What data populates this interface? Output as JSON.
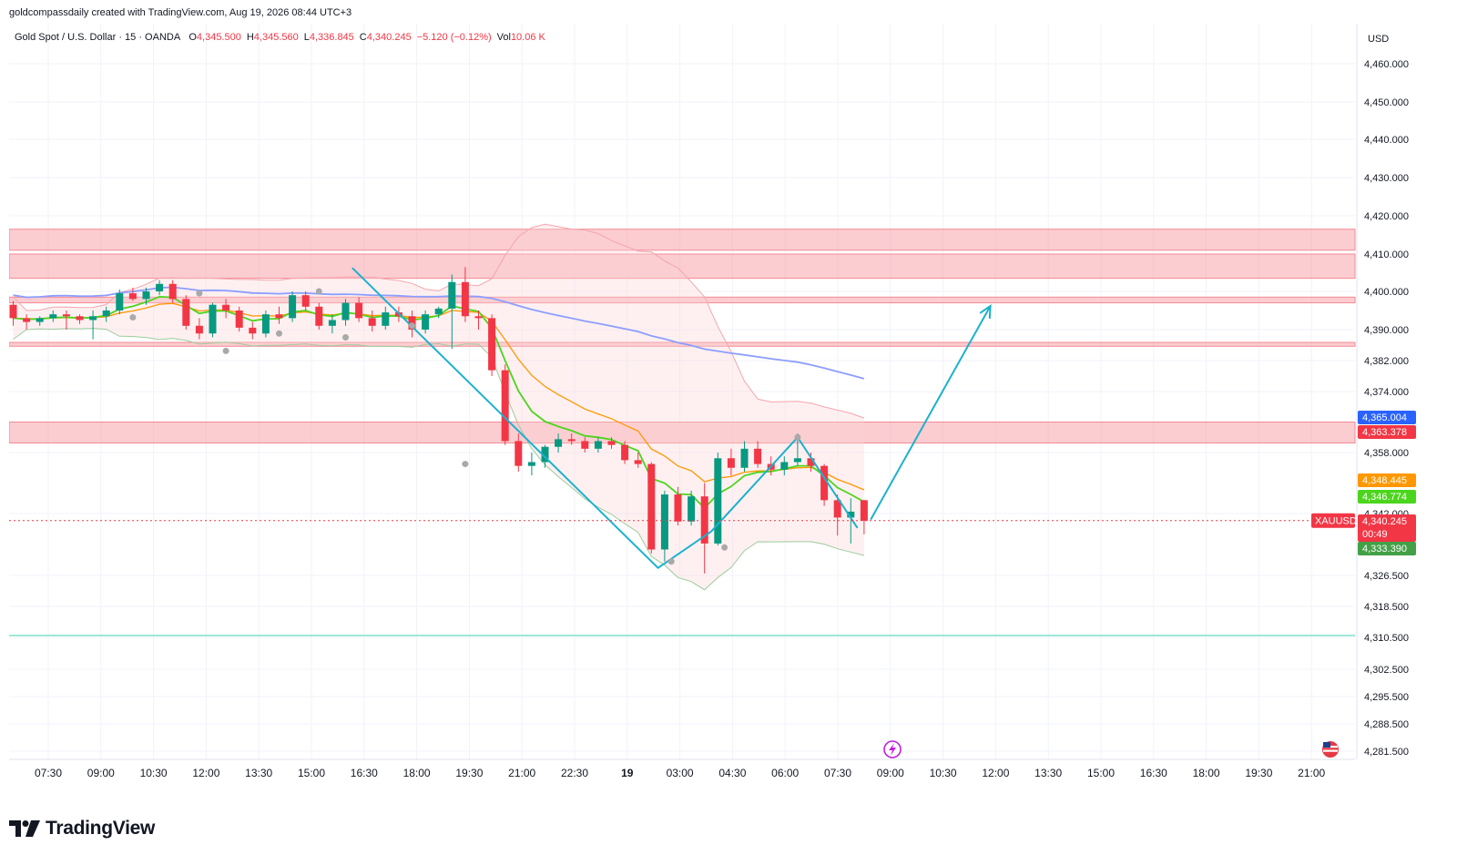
{
  "header": {
    "credit": "goldcompassdaily created with TradingView.com, Aug 19, 2026 08:44 UTC+3",
    "symbol": "Gold Spot / U.S. Dollar · 15 · OANDA",
    "ohlc": [
      {
        "label": "O",
        "value": "4,345.500"
      },
      {
        "label": "H",
        "value": "4,345.560"
      },
      {
        "label": "L",
        "value": "4,336.845"
      },
      {
        "label": "C",
        "value": "4,340.245"
      },
      {
        "label": "",
        "value": "−5.120 (−0.12%)"
      },
      {
        "label": "Vol",
        "value": "10.06 K"
      }
    ]
  },
  "brand": {
    "name": "TradingView"
  },
  "colors": {
    "up": "#089981",
    "down": "#f23645",
    "zone": "#f7a3aa",
    "arrow": "#1cb1cf"
  },
  "chart_data": {
    "type": "candlestick",
    "currency": "USD",
    "x_ticks": [
      "07:30",
      "09:00",
      "10:30",
      "12:00",
      "13:30",
      "15:00",
      "16:30",
      "18:00",
      "19:30",
      "21:00",
      "22:30",
      "19",
      "03:00",
      "04:30",
      "06:00",
      "07:30",
      "09:00",
      "10:30",
      "12:00",
      "13:30",
      "15:00",
      "16:30",
      "18:00",
      "19:30",
      "21:00"
    ],
    "y_ticks": [
      "4,460.000",
      "4,450.000",
      "4,440.000",
      "4,430.000",
      "4,420.000",
      "4,410.000",
      "4,400.000",
      "4,390.000",
      "4,382.000",
      "4,374.000",
      "4,358.000",
      "4,342.000",
      "4,326.500",
      "4,318.500",
      "4,310.500",
      "4,302.500",
      "4,295.500",
      "4,288.500",
      "4,281.500"
    ],
    "y_tick_values": [
      4460,
      4450,
      4440,
      4430,
      4420,
      4410,
      4400,
      4390,
      4382,
      4374,
      4358,
      4342,
      4326.5,
      4318.5,
      4310.5,
      4302.5,
      4295.5,
      4288.5,
      4281.5
    ],
    "y_tick_rows": [
      70,
      112,
      153,
      195,
      237,
      279,
      320,
      362,
      396,
      430,
      497,
      564,
      632,
      666,
      700,
      735,
      765,
      795,
      825
    ],
    "price_badges": [
      {
        "value": "4,365.004",
        "color": "#2962ff"
      },
      {
        "value": "4,363.378",
        "color": "#f23645"
      },
      {
        "value": "4,348.445",
        "color": "#ff9800"
      },
      {
        "value": "4,346.774",
        "color": "#4cd51d"
      },
      {
        "value": "4,340.245",
        "sub": "00:49",
        "color": "#f23645"
      },
      {
        "value": "4,333.390",
        "color": "#43a047"
      }
    ],
    "symbol_label": "XAUUSD",
    "last_price": 4340.245,
    "zones": [
      {
        "from": 4411.0,
        "to": 4416.5
      },
      {
        "from": 4403.5,
        "to": 4410.0
      },
      {
        "from": 4397.0,
        "to": 4398.5
      },
      {
        "from": 4385.7,
        "to": 4386.7
      },
      {
        "from": 4360.5,
        "to": 4366.0
      }
    ],
    "support_level": 4311.0,
    "projection": [
      {
        "i": 64.5,
        "p": 4340.5
      },
      {
        "i": 73.5,
        "p": 4396.2
      }
    ],
    "zigzag": [
      {
        "i": 25.5,
        "p": 4406.3
      },
      {
        "i": 48.5,
        "p": 4328.4
      },
      {
        "i": 52.5,
        "p": 4337.5
      },
      {
        "i": 59.0,
        "p": 4362.0
      },
      {
        "i": 63.5,
        "p": 4338.4
      }
    ],
    "candles": [
      [
        4396.5,
        4397.5,
        4391.0,
        4393.0
      ],
      [
        4393.0,
        4394.0,
        4390.0,
        4392.0
      ],
      [
        4392.0,
        4393.5,
        4391.0,
        4393.0
      ],
      [
        4393.0,
        4395.0,
        4392.0,
        4394.0
      ],
      [
        4394.0,
        4395.0,
        4390.0,
        4393.5
      ],
      [
        4393.5,
        4394.0,
        4391.5,
        4392.5
      ],
      [
        4392.5,
        4395.0,
        4387.5,
        4393.5
      ],
      [
        4393.5,
        4396.0,
        4392.0,
        4395.0
      ],
      [
        4395.0,
        4400.5,
        4394.0,
        4399.5
      ],
      [
        4399.5,
        4401.0,
        4397.5,
        4398.0
      ],
      [
        4398.0,
        4401.0,
        4396.5,
        4400.0
      ],
      [
        4400.0,
        4403.0,
        4399.0,
        4402.0
      ],
      [
        4402.0,
        4403.0,
        4397.0,
        4398.0
      ],
      [
        4398.0,
        4399.0,
        4390.0,
        4391.0
      ],
      [
        4391.0,
        4393.0,
        4387.5,
        4389.0
      ],
      [
        4389.0,
        4397.0,
        4388.0,
        4396.5
      ],
      [
        4396.5,
        4398.0,
        4393.0,
        4395.0
      ],
      [
        4395.0,
        4396.0,
        4389.5,
        4390.5
      ],
      [
        4390.5,
        4392.0,
        4387.5,
        4389.0
      ],
      [
        4389.0,
        4395.0,
        4388.0,
        4394.0
      ],
      [
        4394.0,
        4396.0,
        4391.5,
        4393.0
      ],
      [
        4393.0,
        4400.0,
        4392.0,
        4399.0
      ],
      [
        4399.0,
        4400.0,
        4395.0,
        4396.0
      ],
      [
        4396.0,
        4397.0,
        4390.0,
        4391.0
      ],
      [
        4391.0,
        4394.0,
        4389.0,
        4392.5
      ],
      [
        4392.5,
        4398.0,
        4391.0,
        4397.0
      ],
      [
        4397.0,
        4398.5,
        4392.0,
        4393.0
      ],
      [
        4393.0,
        4395.0,
        4389.5,
        4391.0
      ],
      [
        4391.0,
        4396.0,
        4390.0,
        4394.5
      ],
      [
        4394.5,
        4396.0,
        4392.0,
        4393.5
      ],
      [
        4393.5,
        4395.0,
        4388.0,
        4390.0
      ],
      [
        4390.0,
        4395.0,
        4389.0,
        4394.0
      ],
      [
        4394.0,
        4396.0,
        4393.0,
        4395.5
      ],
      [
        4395.5,
        4404.5,
        4385.0,
        4402.5
      ],
      [
        4402.5,
        4406.5,
        4392.0,
        4393.5
      ],
      [
        4393.5,
        4395.0,
        4390.0,
        4393.0
      ],
      [
        4393.0,
        4394.0,
        4378.0,
        4379.5
      ],
      [
        4379.5,
        4381.0,
        4360.0,
        4361.0
      ],
      [
        4361.0,
        4363.0,
        4353.0,
        4354.5
      ],
      [
        4354.5,
        4358.0,
        4352.0,
        4355.5
      ],
      [
        4355.5,
        4360.0,
        4354.0,
        4359.5
      ],
      [
        4359.5,
        4363.0,
        4358.0,
        4361.5
      ],
      [
        4361.5,
        4363.0,
        4360.0,
        4361.0
      ],
      [
        4361.0,
        4362.0,
        4358.0,
        4359.0
      ],
      [
        4359.0,
        4362.0,
        4358.0,
        4361.0
      ],
      [
        4361.0,
        4362.0,
        4359.0,
        4360.0
      ],
      [
        4360.0,
        4361.0,
        4355.0,
        4356.0
      ],
      [
        4356.0,
        4358.0,
        4354.0,
        4355.0
      ],
      [
        4355.0,
        4355.5,
        4332.0,
        4333.0
      ],
      [
        4333.0,
        4348.0,
        4330.0,
        4347.0
      ],
      [
        4347.0,
        4349.0,
        4339.0,
        4340.0
      ],
      [
        4340.0,
        4348.0,
        4339.0,
        4346.5
      ],
      [
        4346.5,
        4350.0,
        4327.0,
        4334.5
      ],
      [
        4334.5,
        4358.0,
        4334.0,
        4356.5
      ],
      [
        4356.5,
        4359.0,
        4352.0,
        4354.0
      ],
      [
        4354.0,
        4361.0,
        4353.0,
        4359.0
      ],
      [
        4359.0,
        4361.0,
        4354.0,
        4355.0
      ],
      [
        4355.0,
        4357.0,
        4352.0,
        4353.5
      ],
      [
        4353.5,
        4357.0,
        4352.0,
        4355.5
      ],
      [
        4355.5,
        4363.0,
        4354.5,
        4356.5
      ],
      [
        4356.5,
        4358.0,
        4353.0,
        4354.5
      ],
      [
        4354.5,
        4355.0,
        4344.0,
        4345.5
      ],
      [
        4345.5,
        4347.0,
        4336.5,
        4341.0
      ],
      [
        4341.0,
        4346.0,
        4334.5,
        4342.5
      ],
      [
        4345.5,
        4345.6,
        4336.8,
        4340.2
      ]
    ]
  }
}
